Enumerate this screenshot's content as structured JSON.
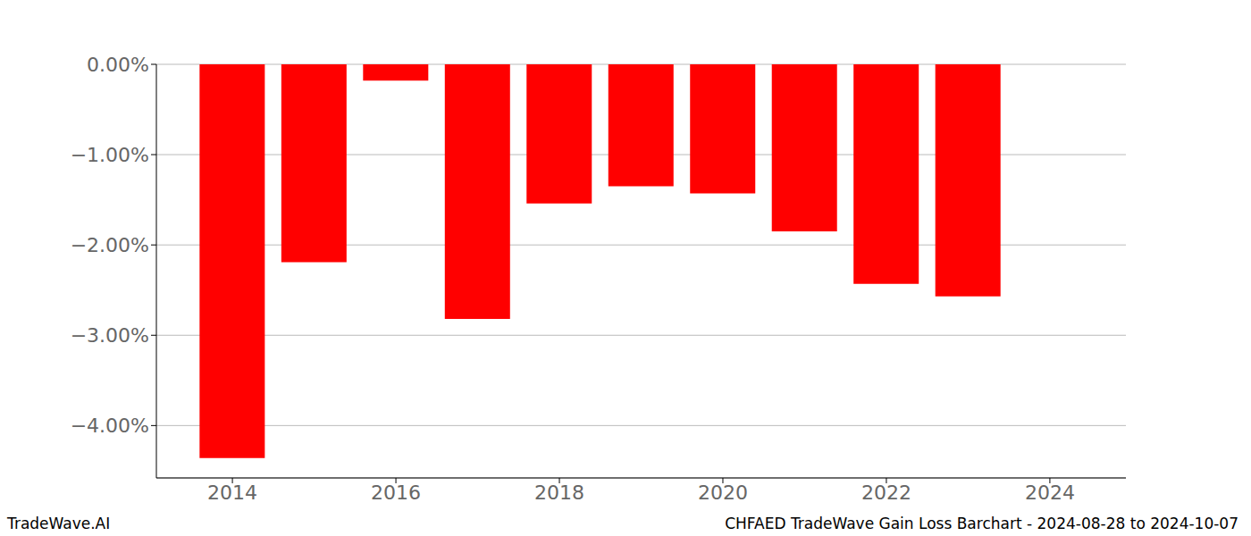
{
  "chart_data": {
    "type": "bar",
    "title": "CHFAED TradeWave Gain Loss Barchart - 2024-08-28 to 2024-10-07",
    "annotations": [
      "TradeWave.AI"
    ],
    "x": [
      2014,
      2015,
      2016,
      2017,
      2018,
      2019,
      2020,
      2021,
      2022,
      2023
    ],
    "values": [
      -4.36,
      -2.19,
      -0.18,
      -2.82,
      -1.54,
      -1.35,
      -1.43,
      -1.85,
      -2.43,
      -2.57
    ],
    "color": "#ff0000",
    "xlim": [
      2013.07,
      2024.93
    ],
    "xticks": [
      2014,
      2016,
      2018,
      2020,
      2022,
      2024
    ],
    "ylim": [
      -4.58,
      0
    ],
    "yticks": [
      {
        "value": 0,
        "label": "0.00%"
      },
      {
        "value": -1,
        "label": "−1.00%"
      },
      {
        "value": -2,
        "label": "−2.00%"
      },
      {
        "value": -3,
        "label": "−3.00%"
      },
      {
        "value": -4,
        "label": "−4.00%"
      }
    ],
    "grid": true
  }
}
